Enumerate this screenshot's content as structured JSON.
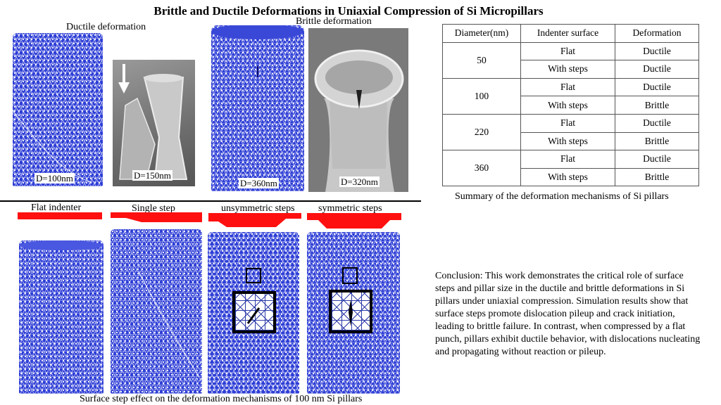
{
  "title": "Brittle and Ductile Deformations in Uniaxial Compression of Si Micropillars",
  "top": {
    "ductile_caption": "Ductile deformation",
    "brittle_caption": "Brittle deformation",
    "labels": [
      "D=100nm",
      "D=150nm",
      "D=360nm",
      "D=320nm"
    ]
  },
  "table": {
    "headers": [
      "Diameter(nm)",
      "Indenter surface",
      "Deformation"
    ],
    "rows": [
      {
        "diameter": "50",
        "r1": [
          "Flat",
          "Ductile"
        ],
        "r2": [
          "With steps",
          "Ductile"
        ]
      },
      {
        "diameter": "100",
        "r1": [
          "Flat",
          "Ductile"
        ],
        "r2": [
          "With steps",
          "Brittle"
        ]
      },
      {
        "diameter": "220",
        "r1": [
          "Flat",
          "Ductile"
        ],
        "r2": [
          "With steps",
          "Brittle"
        ]
      },
      {
        "diameter": "360",
        "r1": [
          "Flat",
          "Ductile"
        ],
        "r2": [
          "With steps",
          "Brittle"
        ]
      }
    ],
    "caption": "Summary of the deformation mechanisms of Si pillars"
  },
  "bottom": {
    "headers": [
      "Flat indenter",
      "Single step",
      "unsymmetric steps",
      "symmetric steps"
    ],
    "caption": "Surface step effect on the deformation mechanisms of  100 nm Si pillars"
  },
  "conclusion": "Conclusion: This work demonstrates the critical role of surface steps and pillar size in the ductile and brittle deformations in Si pillars under uniaxial compression. Simulation results show that surface steps promote dislocation pileup and crack initiation, leading to brittle failure. In contrast, when compressed by a flat punch, pillars exhibit ductile behavior, with dislocations nucleating and propagating without reaction or pileup.",
  "colors": {
    "mesh": "#2f3fd6",
    "indenter": "#ff1010"
  },
  "icons": [
    "down-arrow-icon"
  ]
}
